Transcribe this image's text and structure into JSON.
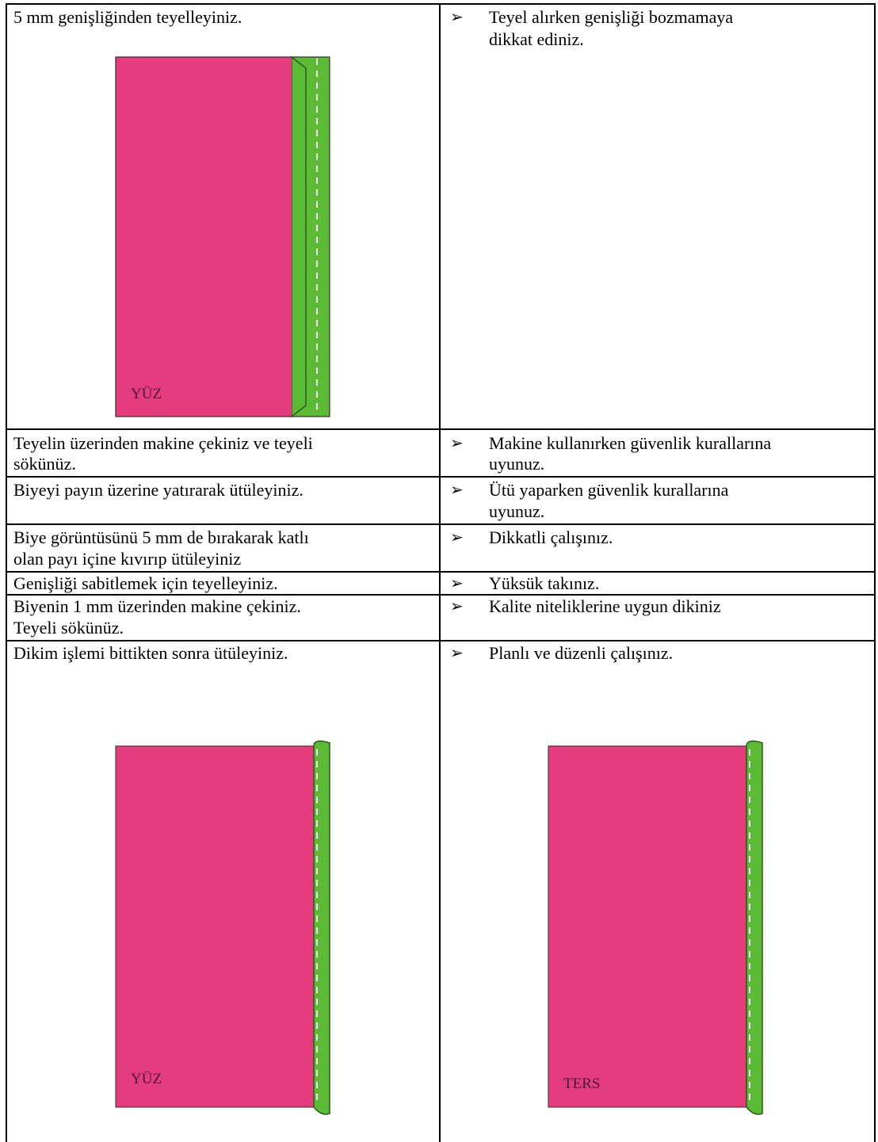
{
  "colors": {
    "fabric": "#e53c7e",
    "binding": "#5cbb35",
    "ink": "#000000",
    "stitch": "#ffffff"
  },
  "bullet_glyph": "➢",
  "bullet_icon": "arrowhead-bullet-icon",
  "rows": [
    {
      "step": [
        "5 mm genişliğinden teyelleyiniz."
      ],
      "tip": [
        "Teyel alırken genişliği bozmamaya",
        "dikkat ediniz."
      ]
    },
    {
      "step": [
        "Teyelin üzerinden makine çekiniz ve teyeli",
        "sökünüz."
      ],
      "tip": [
        "Makine kullanırken güvenlik kurallarına",
        "uyunuz."
      ]
    },
    {
      "step": [
        "Biyeyi payın üzerine yatırarak ütüleyiniz."
      ],
      "tip": [
        "Ütü yaparken güvenlik kurallarına",
        "uyunuz."
      ]
    },
    {
      "step": [
        "Biye görüntüsünü 5 mm de bırakarak katlı",
        "olan payı içine kıvırıp ütüleyiniz"
      ],
      "tip": [
        "Dikkatli çalışınız."
      ]
    },
    {
      "step": [
        "Genişliği sabitlemek için teyelleyiniz."
      ],
      "tip": [
        "Yüksük takınız."
      ]
    },
    {
      "step": [
        "Biyenin 1 mm üzerinden makine çekiniz.",
        "Teyeli sökünüz."
      ],
      "tip": [
        "Kalite niteliklerine uygun dikiniz"
      ]
    },
    {
      "step": [
        "Dikim işlemi bittikten sonra ütüleyiniz."
      ],
      "tip": [
        "Planlı ve düzenli çalışınız."
      ]
    }
  ],
  "figures": {
    "basting": {
      "label": "YÜZ"
    },
    "finished_front": {
      "label": "YÜZ"
    },
    "finished_back": {
      "label": "TERS"
    }
  }
}
